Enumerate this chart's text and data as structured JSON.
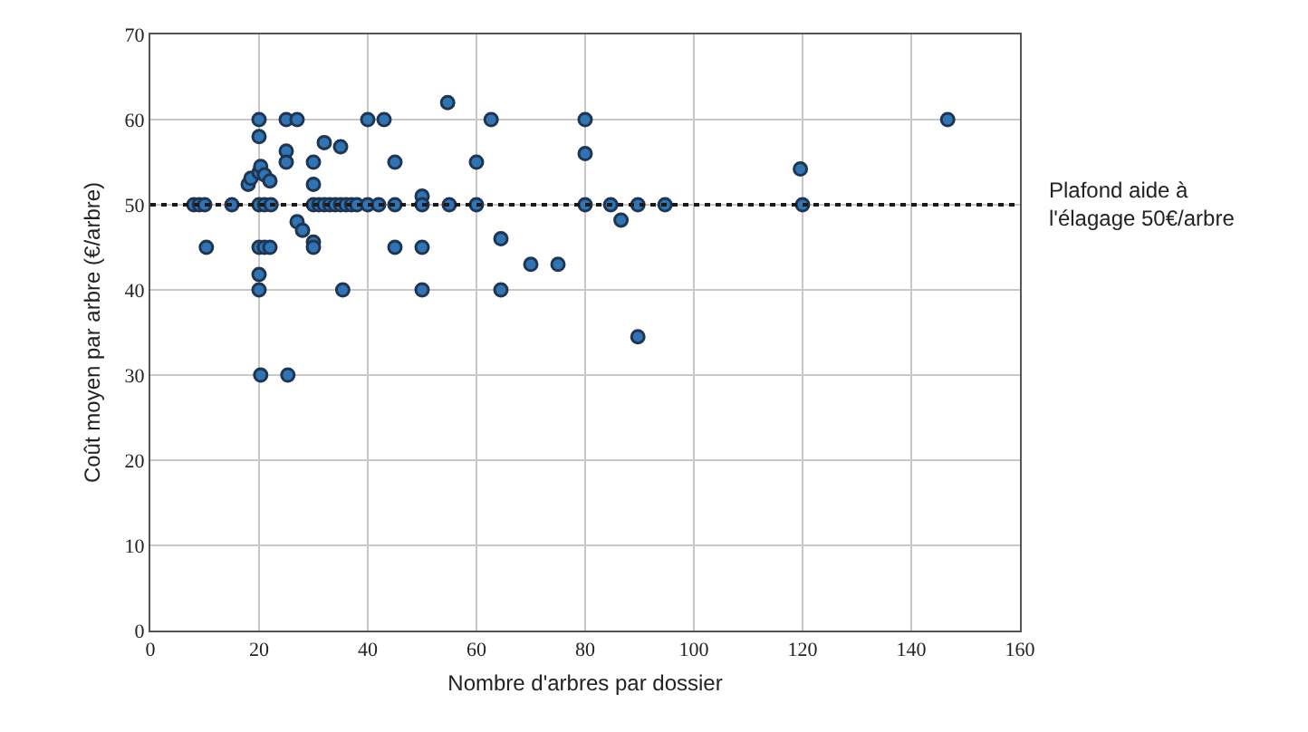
{
  "chart_data": {
    "type": "scatter",
    "xlabel": "Nombre d'arbres par dossier",
    "ylabel": "Coût moyen par arbre (€/arbre)",
    "x": [
      8,
      9,
      10,
      10.3,
      15,
      18,
      18.5,
      20,
      20.3,
      21,
      22,
      20,
      21,
      22.2,
      20,
      21,
      22,
      20,
      20,
      20,
      20,
      20.3,
      25,
      27,
      25,
      25,
      30,
      30,
      32,
      35,
      27,
      28,
      30,
      30,
      30,
      31,
      32,
      33,
      34,
      35,
      36,
      37,
      38,
      40,
      42,
      35.4,
      25.3,
      40,
      43,
      45,
      45,
      45,
      50,
      50,
      50,
      50,
      54.7,
      55,
      60,
      60,
      62.7,
      64.5,
      64.5,
      70,
      75,
      80,
      80,
      80,
      84.7,
      86.6,
      89.7,
      89.7,
      94.7,
      119.6,
      120,
      146.7
    ],
    "values": [
      50,
      50,
      50,
      45,
      50,
      52.4,
      53.1,
      53.8,
      54.5,
      53.5,
      52.8,
      50,
      50,
      50,
      45,
      45,
      45,
      60,
      58,
      41.8,
      40,
      30,
      60,
      60,
      56.3,
      55,
      55,
      52.4,
      57.3,
      56.8,
      48,
      47,
      45.6,
      45,
      50,
      50,
      50,
      50,
      50,
      50,
      50,
      50,
      50,
      50,
      50,
      40,
      30,
      60,
      60,
      55,
      45,
      50,
      51,
      50,
      45,
      40,
      62,
      50,
      55,
      50,
      60,
      46,
      40,
      43,
      43,
      60,
      56,
      50,
      50,
      48.2,
      50,
      34.5,
      50,
      54.2,
      50,
      60
    ],
    "color": "#2f75b5",
    "marker": "circle",
    "xlim": [
      0,
      160
    ],
    "xticks": [
      0,
      20,
      40,
      60,
      80,
      100,
      120,
      140,
      160
    ],
    "ylim": [
      0,
      70
    ],
    "yticks": [
      0,
      10,
      20,
      30,
      40,
      50,
      60,
      70
    ],
    "grid": true,
    "ref_lines": [
      {
        "axis": "y",
        "value": 50,
        "label": "Plafond aide à l'élagage 50€/arbre",
        "color": "#1a1a1a",
        "line_style": "dotted"
      }
    ]
  }
}
